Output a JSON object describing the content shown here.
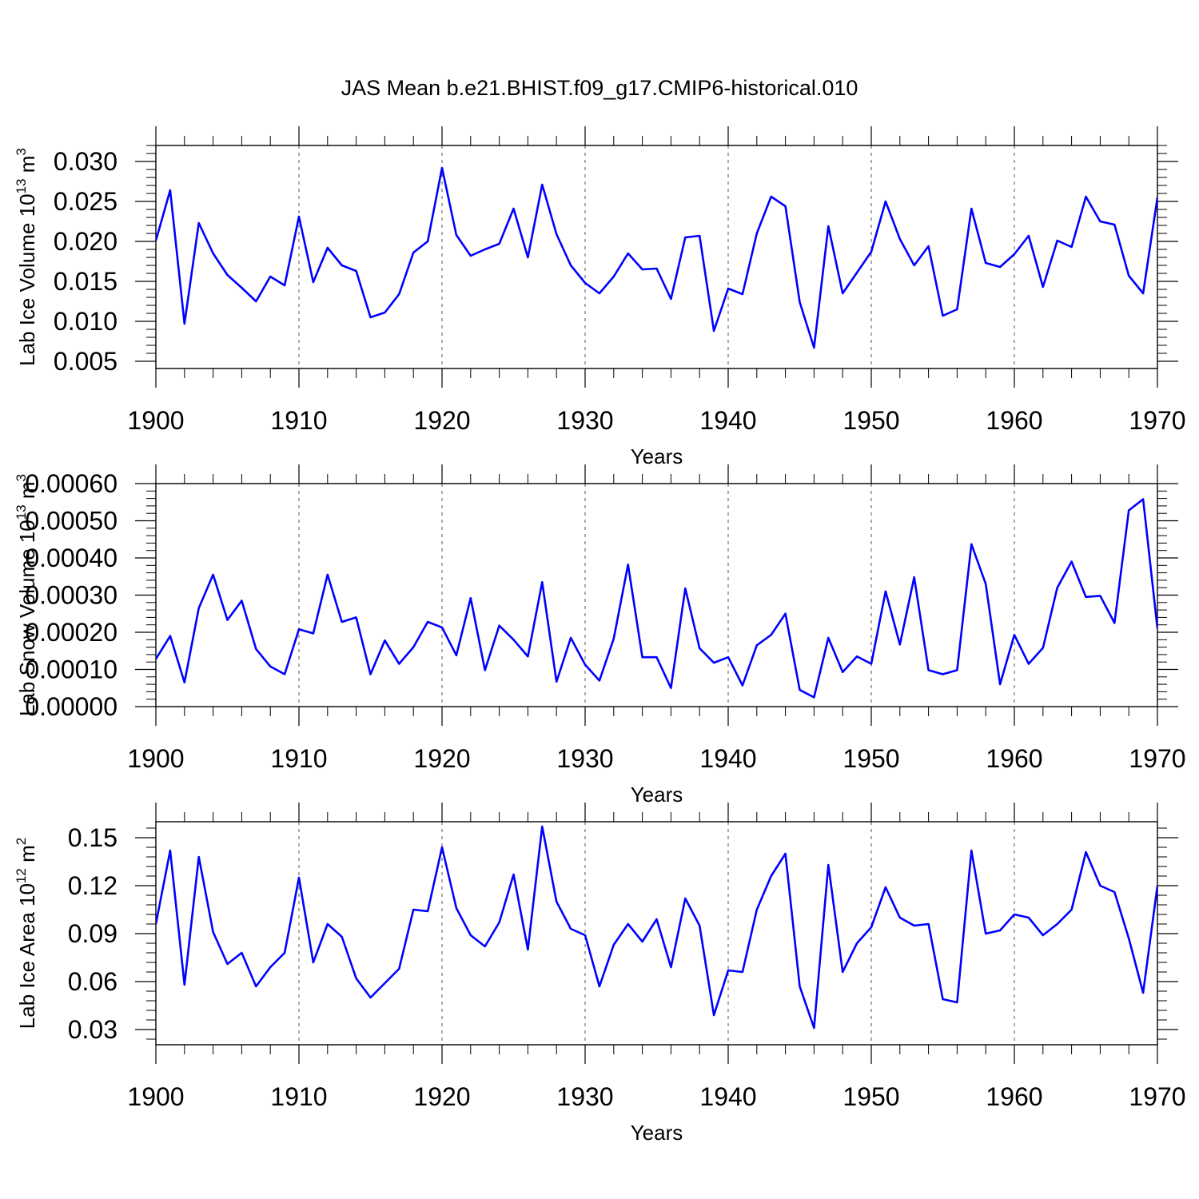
{
  "title": "JAS Mean b.e21.BHIST.f09_g17.CMIP6-historical.010",
  "line_color": "#0000ff",
  "chart_data": [
    {
      "type": "line",
      "ylabel_main": "Lab Ice Volume 10",
      "ylabel_exp": "13",
      "ylabel_unit": " m",
      "ylabel_unit_exp": "3",
      "xlabel": "Years",
      "xlim": [
        1900,
        1970
      ],
      "ylim": [
        0.0041,
        0.032
      ],
      "y_major_ticks": [
        0.005,
        0.01,
        0.015,
        0.02,
        0.025,
        0.03
      ],
      "y_tick_labels": [
        "0.005",
        "0.010",
        "0.015",
        "0.020",
        "0.025",
        "0.030"
      ],
      "x": [
        1900,
        1901,
        1902,
        1903,
        1904,
        1905,
        1906,
        1907,
        1908,
        1909,
        1910,
        1911,
        1912,
        1913,
        1914,
        1915,
        1916,
        1917,
        1918,
        1919,
        1920,
        1921,
        1922,
        1923,
        1924,
        1925,
        1926,
        1927,
        1928,
        1929,
        1930,
        1931,
        1932,
        1933,
        1934,
        1935,
        1936,
        1937,
        1938,
        1939,
        1940,
        1941,
        1942,
        1943,
        1944,
        1945,
        1946,
        1947,
        1948,
        1949,
        1950,
        1951,
        1952,
        1953,
        1954,
        1955,
        1956,
        1957,
        1958,
        1959,
        1960,
        1961,
        1962,
        1963,
        1964,
        1965,
        1966,
        1967,
        1968,
        1969,
        1970
      ],
      "values": [
        0.0201,
        0.0264,
        0.0097,
        0.0223,
        0.0185,
        0.0158,
        0.0142,
        0.0125,
        0.0156,
        0.0145,
        0.0231,
        0.0149,
        0.0192,
        0.017,
        0.0163,
        0.0105,
        0.0111,
        0.0134,
        0.0186,
        0.02,
        0.0292,
        0.0208,
        0.0182,
        0.019,
        0.0197,
        0.0241,
        0.018,
        0.0271,
        0.0209,
        0.017,
        0.0148,
        0.0135,
        0.0156,
        0.0185,
        0.0165,
        0.0166,
        0.0128,
        0.0205,
        0.0207,
        0.0088,
        0.0141,
        0.0134,
        0.021,
        0.0256,
        0.0244,
        0.0124,
        0.0067,
        0.0219,
        0.0135,
        0.0161,
        0.0187,
        0.025,
        0.0203,
        0.017,
        0.0194,
        0.0107,
        0.0115,
        0.0241,
        0.0173,
        0.0168,
        0.0184,
        0.0207,
        0.0143,
        0.0201,
        0.0193,
        0.0256,
        0.0225,
        0.0221,
        0.0157,
        0.0135,
        0.0255
      ]
    },
    {
      "type": "line",
      "ylabel_main": "Lab Snow Volume 10",
      "ylabel_exp": "13",
      "ylabel_unit": " m",
      "ylabel_unit_exp": "3",
      "xlabel": "Years",
      "xlim": [
        1900,
        1970
      ],
      "ylim": [
        0.0,
        0.0006
      ],
      "y_major_ticks": [
        0.0,
        0.0001,
        0.0002,
        0.0003,
        0.0004,
        0.0005,
        0.0006
      ],
      "y_tick_labels": [
        "0.00000",
        "0.00010",
        "0.00020",
        "0.00030",
        "0.00040",
        "0.00050",
        "0.00060"
      ],
      "x": [
        1900,
        1901,
        1902,
        1903,
        1904,
        1905,
        1906,
        1907,
        1908,
        1909,
        1910,
        1911,
        1912,
        1913,
        1914,
        1915,
        1916,
        1917,
        1918,
        1919,
        1920,
        1921,
        1922,
        1923,
        1924,
        1925,
        1926,
        1927,
        1928,
        1929,
        1930,
        1931,
        1932,
        1933,
        1934,
        1935,
        1936,
        1937,
        1938,
        1939,
        1940,
        1941,
        1942,
        1943,
        1944,
        1945,
        1946,
        1947,
        1948,
        1949,
        1950,
        1951,
        1952,
        1953,
        1954,
        1955,
        1956,
        1957,
        1958,
        1959,
        1960,
        1961,
        1962,
        1963,
        1964,
        1965,
        1966,
        1967,
        1968,
        1969,
        1970
      ],
      "values": [
        0.000128,
        0.00019,
        6.5e-05,
        0.000265,
        0.000355,
        0.000233,
        0.000285,
        0.000155,
        0.000108,
        8.7e-05,
        0.000208,
        0.000197,
        0.000355,
        0.000228,
        0.00024,
        8.7e-05,
        0.000178,
        0.000115,
        0.00016,
        0.000228,
        0.000213,
        0.000138,
        0.000292,
        9.8e-05,
        0.000218,
        0.00018,
        0.000135,
        0.000335,
        6.7e-05,
        0.000185,
        0.000113,
        7e-05,
        0.000183,
        0.000382,
        0.000133,
        0.000133,
        5e-05,
        0.000318,
        0.000157,
        0.000118,
        0.000133,
        5.7e-05,
        0.000165,
        0.000193,
        0.00025,
        4.5e-05,
        2.5e-05,
        0.000185,
        9.3e-05,
        0.000135,
        0.000115,
        0.00031,
        0.000167,
        0.000348,
        9.8e-05,
        8.7e-05,
        9.8e-05,
        0.000437,
        0.00033,
        6e-05,
        0.000193,
        0.000115,
        0.000158,
        0.00032,
        0.00039,
        0.000295,
        0.000298,
        0.000225,
        0.000528,
        0.000558,
        0.00021
      ]
    },
    {
      "type": "line",
      "ylabel_main": "Lab Ice Area 10",
      "ylabel_exp": "12",
      "ylabel_unit": " m",
      "ylabel_unit_exp": "2",
      "xlabel": "Years",
      "xlim": [
        1900,
        1970
      ],
      "ylim": [
        0.0205,
        0.16
      ],
      "y_major_ticks": [
        0.03,
        0.06,
        0.09,
        0.12,
        0.15
      ],
      "y_tick_labels": [
        "0.03",
        "0.06",
        "0.09",
        "0.12",
        "0.15"
      ],
      "x": [
        1900,
        1901,
        1902,
        1903,
        1904,
        1905,
        1906,
        1907,
        1908,
        1909,
        1910,
        1911,
        1912,
        1913,
        1914,
        1915,
        1916,
        1917,
        1918,
        1919,
        1920,
        1921,
        1922,
        1923,
        1924,
        1925,
        1926,
        1927,
        1928,
        1929,
        1930,
        1931,
        1932,
        1933,
        1934,
        1935,
        1936,
        1937,
        1938,
        1939,
        1940,
        1941,
        1942,
        1943,
        1944,
        1945,
        1946,
        1947,
        1948,
        1949,
        1950,
        1951,
        1952,
        1953,
        1954,
        1955,
        1956,
        1957,
        1958,
        1959,
        1960,
        1961,
        1962,
        1963,
        1964,
        1965,
        1966,
        1967,
        1968,
        1969,
        1970
      ],
      "values": [
        0.096,
        0.142,
        0.058,
        0.138,
        0.091,
        0.071,
        0.078,
        0.057,
        0.069,
        0.078,
        0.125,
        0.072,
        0.096,
        0.088,
        0.062,
        0.05,
        0.059,
        0.068,
        0.105,
        0.104,
        0.144,
        0.106,
        0.089,
        0.082,
        0.097,
        0.127,
        0.08,
        0.157,
        0.11,
        0.093,
        0.089,
        0.057,
        0.083,
        0.096,
        0.085,
        0.099,
        0.069,
        0.112,
        0.095,
        0.039,
        0.067,
        0.066,
        0.105,
        0.126,
        0.14,
        0.057,
        0.031,
        0.133,
        0.066,
        0.084,
        0.094,
        0.119,
        0.1,
        0.095,
        0.096,
        0.049,
        0.047,
        0.142,
        0.09,
        0.092,
        0.102,
        0.1,
        0.089,
        0.096,
        0.105,
        0.141,
        0.12,
        0.116,
        0.087,
        0.053,
        0.12
      ]
    }
  ]
}
